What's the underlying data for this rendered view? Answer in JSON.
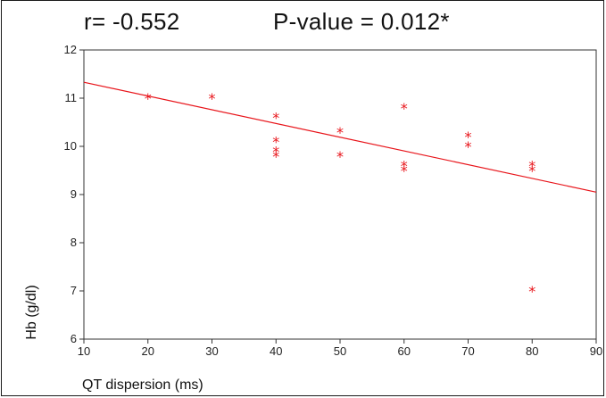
{
  "stats": {
    "r_text": "r= -0.552",
    "p_text": "P-value = 0.012*"
  },
  "chart_data": {
    "type": "scatter",
    "xlabel": "QT dispersion (ms)",
    "ylabel": "Hb (g/dl)",
    "xlim": [
      10,
      90
    ],
    "ylim": [
      6,
      12
    ],
    "xticks": [
      10,
      20,
      30,
      40,
      50,
      60,
      70,
      80,
      90
    ],
    "yticks": [
      6,
      7,
      8,
      9,
      10,
      11,
      12
    ],
    "grid": false,
    "marker": "*",
    "point_color": "#e8141a",
    "line_color": "#e8141a",
    "series": [
      {
        "points": [
          [
            20,
            11.0
          ],
          [
            30,
            11.0
          ],
          [
            40,
            10.6
          ],
          [
            40,
            10.1
          ],
          [
            40,
            9.9
          ],
          [
            40,
            9.8
          ],
          [
            50,
            10.3
          ],
          [
            50,
            9.8
          ],
          [
            60,
            10.8
          ],
          [
            60,
            9.6
          ],
          [
            60,
            9.5
          ],
          [
            70,
            10.2
          ],
          [
            70,
            10.0
          ],
          [
            80,
            9.6
          ],
          [
            80,
            9.5
          ],
          [
            80,
            7.0
          ]
        ]
      }
    ],
    "fit_line": {
      "y_at_xmin": 11.33,
      "y_at_xmax": 9.05
    }
  }
}
